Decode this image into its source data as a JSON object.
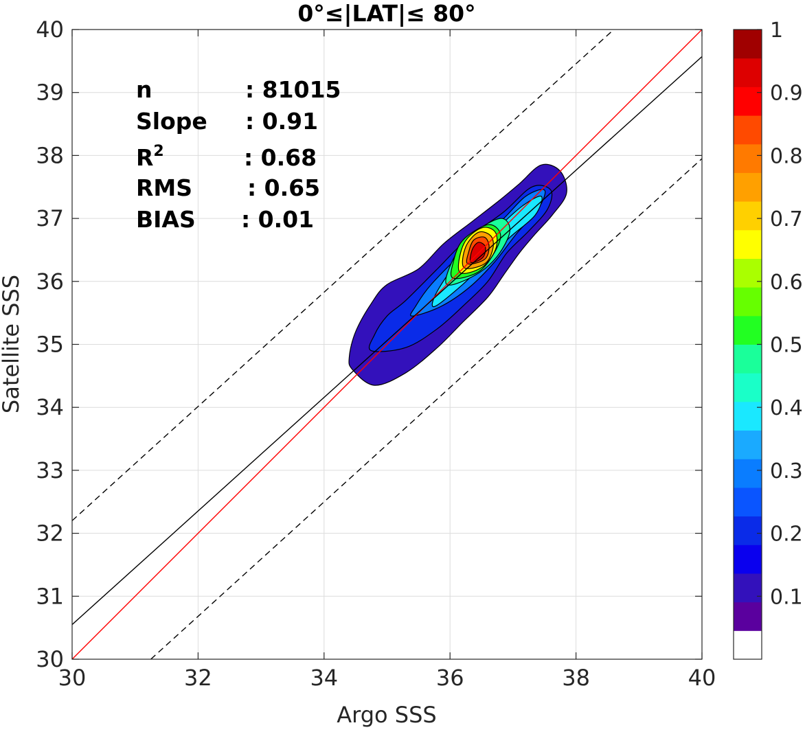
{
  "chart_data": {
    "type": "heatmap",
    "title": "0°≤|LAT|≤ 80°",
    "xlabel": "Argo SSS",
    "ylabel": "Satellite SSS",
    "xlim": [
      30,
      40
    ],
    "ylim": [
      30,
      40
    ],
    "x_ticks": [
      30,
      32,
      34,
      36,
      38,
      40
    ],
    "y_ticks": [
      30,
      31,
      32,
      33,
      34,
      35,
      36,
      37,
      38,
      39,
      40
    ],
    "grid": true,
    "stats": [
      {
        "label": "n",
        "value": ": 81015"
      },
      {
        "label": "Slope",
        "value": ": 0.91"
      },
      {
        "label": "R",
        "superscript": "2",
        "value": ": 0.68"
      },
      {
        "label": "RMS",
        "value": ": 0.65"
      },
      {
        "label": "BIAS",
        "value": ": 0.01"
      }
    ],
    "reference_lines": [
      {
        "type": "one_to_one",
        "color": "#ff0000",
        "style": "solid",
        "points": [
          [
            30,
            30
          ],
          [
            40,
            40
          ]
        ]
      },
      {
        "type": "regression_fit",
        "color": "#000000",
        "style": "solid",
        "points": [
          [
            30,
            30.55
          ],
          [
            40,
            39.57
          ]
        ]
      },
      {
        "type": "upper_bound",
        "color": "#000000",
        "style": "dashed",
        "points": [
          [
            30,
            32.2
          ],
          [
            38.6,
            40
          ]
        ]
      },
      {
        "type": "lower_bound",
        "color": "#000000",
        "style": "dashed",
        "points": [
          [
            31.25,
            30
          ],
          [
            40,
            37.95
          ]
        ]
      }
    ],
    "density_peak": {
      "x": 36.45,
      "y": 36.45
    },
    "density_levels": [
      {
        "level": 0.05,
        "color": "#3311bb",
        "points": [
          [
            34.45,
            34.6
          ],
          [
            34.8,
            34.35
          ],
          [
            35.3,
            34.55
          ],
          [
            35.8,
            34.95
          ],
          [
            36.2,
            35.35
          ],
          [
            36.6,
            35.75
          ],
          [
            36.85,
            36.1
          ],
          [
            37.1,
            36.45
          ],
          [
            37.35,
            36.75
          ],
          [
            37.62,
            37.05
          ],
          [
            37.85,
            37.4
          ],
          [
            37.75,
            37.75
          ],
          [
            37.45,
            37.85
          ],
          [
            37.1,
            37.55
          ],
          [
            36.8,
            37.3
          ],
          [
            36.35,
            36.95
          ],
          [
            35.9,
            36.6
          ],
          [
            35.5,
            36.2
          ],
          [
            35.0,
            35.95
          ],
          [
            34.75,
            35.65
          ],
          [
            34.5,
            35.2
          ],
          [
            34.4,
            34.8
          ]
        ]
      },
      {
        "level": 0.15,
        "color": "#0a2be8",
        "points": [
          [
            34.75,
            34.9
          ],
          [
            35.3,
            34.95
          ],
          [
            35.8,
            35.25
          ],
          [
            36.25,
            35.65
          ],
          [
            36.6,
            36.0
          ],
          [
            36.9,
            36.45
          ],
          [
            37.25,
            36.8
          ],
          [
            37.55,
            37.15
          ],
          [
            37.6,
            37.45
          ],
          [
            37.3,
            37.5
          ],
          [
            36.85,
            37.1
          ],
          [
            36.3,
            36.7
          ],
          [
            35.8,
            36.2
          ],
          [
            35.3,
            35.7
          ],
          [
            35.0,
            35.45
          ],
          [
            34.8,
            35.15
          ]
        ]
      },
      {
        "level": 0.25,
        "color": "#0a7dff",
        "points": [
          [
            35.4,
            35.45
          ],
          [
            35.85,
            35.6
          ],
          [
            36.3,
            35.9
          ],
          [
            36.7,
            36.3
          ],
          [
            37.05,
            36.75
          ],
          [
            37.4,
            37.15
          ],
          [
            37.5,
            37.45
          ],
          [
            37.2,
            37.35
          ],
          [
            36.8,
            36.95
          ],
          [
            36.2,
            36.45
          ],
          [
            35.7,
            35.95
          ],
          [
            35.45,
            35.6
          ]
        ]
      },
      {
        "level": 0.35,
        "color": "#1ae8ff",
        "points": [
          [
            35.75,
            35.6
          ],
          [
            36.2,
            35.95
          ],
          [
            36.6,
            36.35
          ],
          [
            36.95,
            36.7
          ],
          [
            37.35,
            37.05
          ],
          [
            37.45,
            37.35
          ],
          [
            37.15,
            37.2
          ],
          [
            36.75,
            36.85
          ],
          [
            36.2,
            36.4
          ],
          [
            35.8,
            35.85
          ]
        ]
      },
      {
        "level": 0.45,
        "color": "#1aff9a",
        "points": [
          [
            35.95,
            35.95
          ],
          [
            36.4,
            36.1
          ],
          [
            36.75,
            36.4
          ],
          [
            36.95,
            36.8
          ],
          [
            36.8,
            37.0
          ],
          [
            36.35,
            36.75
          ],
          [
            36.05,
            36.35
          ]
        ]
      },
      {
        "level": 0.55,
        "color": "#22ff22",
        "points": [
          [
            36.05,
            36.05
          ],
          [
            36.45,
            36.15
          ],
          [
            36.7,
            36.45
          ],
          [
            36.8,
            36.75
          ],
          [
            36.6,
            36.9
          ],
          [
            36.2,
            36.65
          ],
          [
            36.05,
            36.3
          ]
        ]
      },
      {
        "level": 0.65,
        "color": "#ffff00",
        "points": [
          [
            36.15,
            36.15
          ],
          [
            36.5,
            36.22
          ],
          [
            36.72,
            36.5
          ],
          [
            36.72,
            36.78
          ],
          [
            36.5,
            36.85
          ],
          [
            36.22,
            36.6
          ]
        ]
      },
      {
        "level": 0.75,
        "color": "#ffa000",
        "points": [
          [
            36.22,
            36.22
          ],
          [
            36.55,
            36.28
          ],
          [
            36.68,
            36.52
          ],
          [
            36.65,
            36.72
          ],
          [
            36.45,
            36.78
          ],
          [
            36.25,
            36.55
          ]
        ]
      },
      {
        "level": 0.85,
        "color": "#ff4a00",
        "points": [
          [
            36.28,
            36.28
          ],
          [
            36.55,
            36.35
          ],
          [
            36.62,
            36.55
          ],
          [
            36.55,
            36.7
          ],
          [
            36.38,
            36.66
          ],
          [
            36.3,
            36.48
          ]
        ]
      },
      {
        "level": 0.95,
        "color": "#dd0000",
        "points": [
          [
            36.33,
            36.3
          ],
          [
            36.52,
            36.38
          ],
          [
            36.56,
            36.55
          ],
          [
            36.45,
            36.62
          ],
          [
            36.35,
            36.5
          ]
        ]
      }
    ],
    "colorbar": {
      "range": [
        0,
        1
      ],
      "ticks": [
        {
          "value": 0.1,
          "label": "0.1"
        },
        {
          "value": 0.2,
          "label": "0.2"
        },
        {
          "value": 0.3,
          "label": "0.3"
        },
        {
          "value": 0.4,
          "label": "0.4"
        },
        {
          "value": 0.5,
          "label": "0.5"
        },
        {
          "value": 0.6,
          "label": "0.6"
        },
        {
          "value": 0.7,
          "label": "0.7"
        },
        {
          "value": 0.8,
          "label": "0.8"
        },
        {
          "value": 0.9,
          "label": "0.9"
        },
        {
          "value": 1.0,
          "label": "1"
        }
      ],
      "colors": [
        "#ffffff",
        "#5a009e",
        "#3311bb",
        "#0a00ee",
        "#0a2be8",
        "#0a55ff",
        "#0a7dff",
        "#1aaaff",
        "#1ae8ff",
        "#1affc8",
        "#1aff9a",
        "#22ff22",
        "#66ff00",
        "#aaff00",
        "#ffff00",
        "#ffd000",
        "#ffa000",
        "#ff7a00",
        "#ff4a00",
        "#ff0000",
        "#dd0000",
        "#a00000"
      ]
    }
  }
}
